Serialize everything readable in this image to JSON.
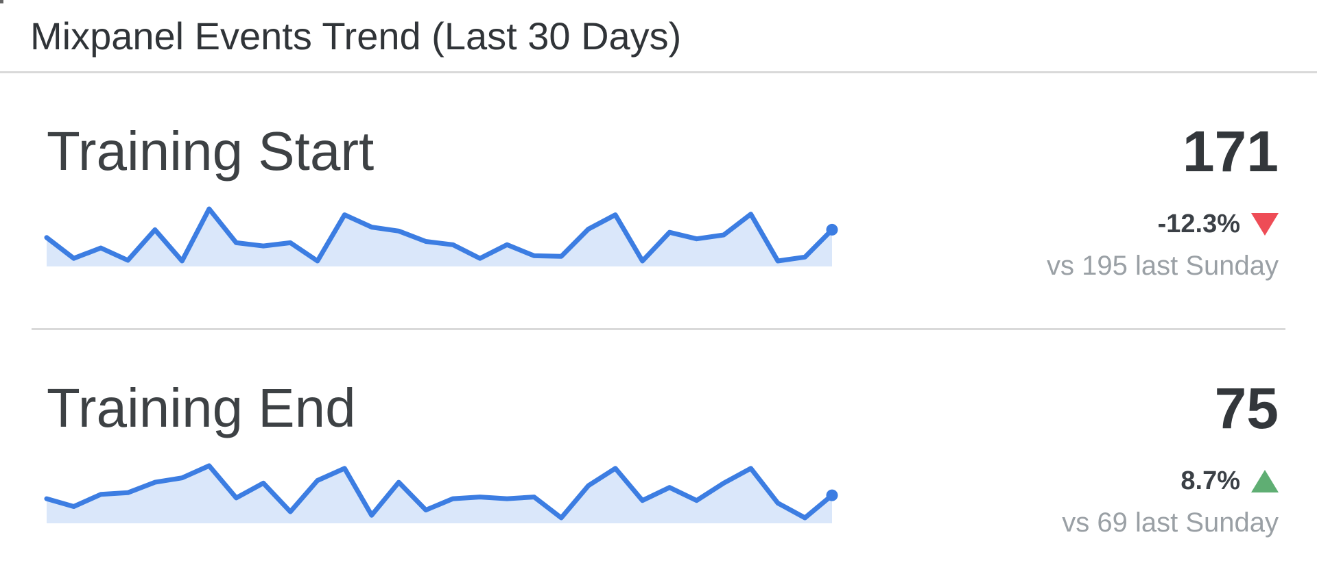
{
  "widget": {
    "title": "Mixpanel Events Trend (Last 30 Days)"
  },
  "metrics": [
    {
      "name": "Training Start",
      "value": "171",
      "change": "-12.3%",
      "direction": "down",
      "comparison": "vs 195 last Sunday"
    },
    {
      "name": "Training End",
      "value": "75",
      "change": "8.7%",
      "direction": "up",
      "comparison": "vs 69 last Sunday"
    }
  ],
  "colors": {
    "sparkline_line": "#3c7de2",
    "sparkline_fill": "#dae7fa",
    "negative": "#ee4c56",
    "positive": "#5fae73",
    "value_text": "#33373b",
    "heading_text": "#3d4144",
    "secondary_text": "#9aa0a5",
    "divider": "#d9d9d9"
  },
  "chart_data": [
    {
      "type": "line",
      "style": "sparkline-area",
      "title": "Training Start",
      "x_range": "last 30 days",
      "x_axis": "hidden",
      "y_axis": "hidden",
      "values": [
        159,
        127,
        143,
        124,
        171,
        123,
        203,
        151,
        146,
        151,
        123,
        194,
        175,
        169,
        153,
        148,
        127,
        148,
        131,
        130,
        172,
        194,
        123,
        167,
        157,
        163,
        195,
        123,
        129,
        171
      ],
      "current": 171,
      "change_percent": -12.3,
      "previous_sunday": 195
    },
    {
      "type": "line",
      "style": "sparkline-area",
      "title": "Training End",
      "x_range": "last 30 days",
      "x_axis": "hidden",
      "y_axis": "hidden",
      "values": [
        71,
        62,
        76,
        78,
        90,
        95,
        109,
        72,
        89,
        56,
        92,
        106,
        52,
        90,
        58,
        71,
        73,
        71,
        73,
        49,
        86,
        106,
        69,
        84,
        69,
        89,
        106,
        66,
        49,
        75
      ],
      "current": 75,
      "change_percent": 8.7,
      "previous_sunday": 69
    }
  ]
}
